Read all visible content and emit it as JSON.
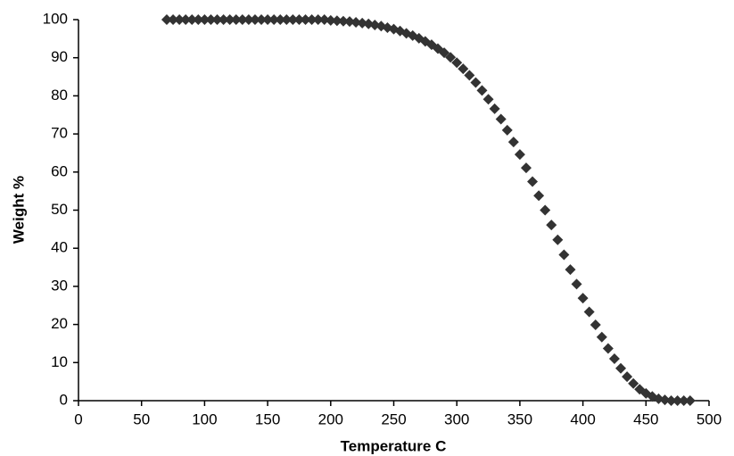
{
  "chart_data": {
    "type": "scatter",
    "x_label": "Temperature C",
    "y_label": "Weight %",
    "color": "#333333",
    "x": [
      70,
      75,
      80,
      85,
      90,
      95,
      100,
      105,
      110,
      115,
      120,
      125,
      130,
      135,
      140,
      145,
      150,
      155,
      160,
      165,
      170,
      175,
      180,
      185,
      190,
      195,
      200,
      205,
      210,
      215,
      220,
      225,
      230,
      235,
      240,
      245,
      250,
      255,
      260,
      265,
      270,
      275,
      280,
      285,
      290,
      295,
      300,
      305,
      310,
      315,
      320,
      325,
      330,
      335,
      340,
      345,
      350,
      355,
      360,
      365,
      370,
      375,
      380,
      385,
      390,
      395,
      400,
      405,
      410,
      415,
      420,
      425,
      430,
      435,
      440,
      445,
      450,
      455,
      460,
      465,
      470,
      475,
      480,
      485
    ],
    "values": [
      100,
      100,
      100,
      100,
      100,
      100,
      100,
      100,
      100,
      100,
      100,
      100,
      100,
      100,
      100,
      100,
      100,
      100,
      100,
      100,
      100,
      100,
      100,
      100,
      100,
      100,
      99.8,
      99.7,
      99.6,
      99.5,
      99.3,
      99.1,
      98.9,
      98.6,
      98.3,
      97.9,
      97.5,
      97,
      96.4,
      95.8,
      95.1,
      94.3,
      93.4,
      92.4,
      91.3,
      90.1,
      88.7,
      87.1,
      85.4,
      83.5,
      81.4,
      79.1,
      76.6,
      73.9,
      71,
      67.9,
      64.6,
      61.1,
      57.5,
      53.8,
      50,
      46.1,
      42.2,
      38.3,
      34.4,
      30.6,
      26.9,
      23.3,
      19.9,
      16.7,
      13.7,
      11,
      8.5,
      6.3,
      4.5,
      3,
      1.9,
      1.1,
      0.5,
      0.2,
      0,
      0,
      0,
      0
    ],
    "xlim": [
      0,
      500
    ],
    "xticks": [
      0,
      50,
      100,
      150,
      200,
      250,
      300,
      350,
      400,
      450,
      500
    ],
    "ylim": [
      0,
      100
    ],
    "yticks": [
      0,
      10,
      20,
      30,
      40,
      50,
      60,
      70,
      80,
      90,
      100
    ],
    "grid": false
  }
}
